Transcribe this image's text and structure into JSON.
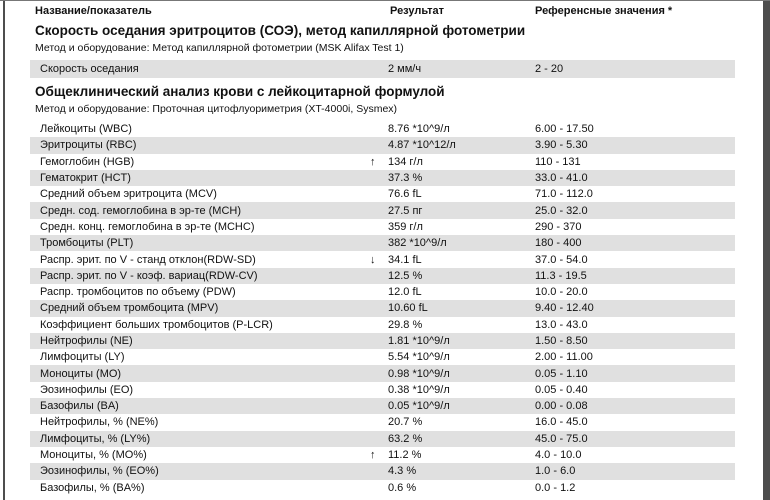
{
  "colors": {
    "row_shade": "#e0e0e0",
    "chrome": "#4d4d4d",
    "text": "#111111"
  },
  "columns": {
    "name": "Название/показатель",
    "result": "Результат",
    "reference": "Референсные значения *"
  },
  "sections": [
    {
      "title": "Скорость оседания эритроцитов (СОЭ), метод капиллярной фотометрии",
      "method": "Метод и оборудование: Метод капиллярной фотометрии (MSK Alifax Test 1)",
      "rows": [
        {
          "name": "Скорость оседания",
          "flag": "",
          "result": "2 мм/ч",
          "reference": "2 - 20",
          "shaded": true
        }
      ]
    },
    {
      "title": "Общеклинический анализ крови с лейкоцитарной формулой",
      "method": "Метод и оборудование: Проточная цитофлуориметрия (XT-4000i, Sysmex)",
      "rows": [
        {
          "name": "Лейкоциты (WBC)",
          "flag": "",
          "result": "8.76 *10^9/л",
          "reference": "6.00 - 17.50",
          "shaded": false
        },
        {
          "name": "Эритроциты (RBC)",
          "flag": "",
          "result": "4.87 *10^12/л",
          "reference": "3.90 - 5.30",
          "shaded": true
        },
        {
          "name": "Гемоглобин (HGB)",
          "flag": "↑",
          "result": "134 г/л",
          "reference": "110 - 131",
          "shaded": false
        },
        {
          "name": "Гематокрит (HCT)",
          "flag": "",
          "result": "37.3 %",
          "reference": "33.0 - 41.0",
          "shaded": true
        },
        {
          "name": "Средний объем эритроцита (MCV)",
          "flag": "",
          "result": "76.6 fL",
          "reference": "71.0 - 112.0",
          "shaded": false
        },
        {
          "name": "Средн. сод. гемоглобина в эр-те (MCH)",
          "flag": "",
          "result": "27.5 пг",
          "reference": "25.0 - 32.0",
          "shaded": true
        },
        {
          "name": "Средн. конц. гемоглобина в эр-те (MCHC)",
          "flag": "",
          "result": "359 г/л",
          "reference": "290 - 370",
          "shaded": false
        },
        {
          "name": "Тромбоциты (PLT)",
          "flag": "",
          "result": "382 *10^9/л",
          "reference": "180 - 400",
          "shaded": true
        },
        {
          "name": "Распр. эрит. по V - станд отклон(RDW-SD)",
          "flag": "↓",
          "result": "34.1 fL",
          "reference": "37.0 - 54.0",
          "shaded": false
        },
        {
          "name": "Распр. эрит. по V - коэф. вариац(RDW-CV)",
          "flag": "",
          "result": "12.5 %",
          "reference": "11.3 - 19.5",
          "shaded": true
        },
        {
          "name": "Распр. тромбоцитов по объему (PDW)",
          "flag": "",
          "result": "12.0 fL",
          "reference": "10.0 - 20.0",
          "shaded": false
        },
        {
          "name": "Средний объем тромбоцита (MPV)",
          "flag": "",
          "result": "10.60 fL",
          "reference": "9.40 - 12.40",
          "shaded": true
        },
        {
          "name": "Коэффициент больших тромбоцитов (P-LCR)",
          "flag": "",
          "result": "29.8 %",
          "reference": "13.0 - 43.0",
          "shaded": false
        },
        {
          "name": "Нейтрофилы (NE)",
          "flag": "",
          "result": "1.81 *10^9/л",
          "reference": "1.50 - 8.50",
          "shaded": true
        },
        {
          "name": "Лимфоциты (LY)",
          "flag": "",
          "result": "5.54 *10^9/л",
          "reference": "2.00 - 11.00",
          "shaded": false
        },
        {
          "name": "Моноциты (MO)",
          "flag": "",
          "result": "0.98 *10^9/л",
          "reference": "0.05 - 1.10",
          "shaded": true
        },
        {
          "name": "Эозинофилы (EO)",
          "flag": "",
          "result": "0.38 *10^9/л",
          "reference": "0.05 - 0.40",
          "shaded": false
        },
        {
          "name": "Базофилы (BA)",
          "flag": "",
          "result": "0.05 *10^9/л",
          "reference": "0.00 - 0.08",
          "shaded": true
        },
        {
          "name": "Нейтрофилы, % (NE%)",
          "flag": "",
          "result": "20.7 %",
          "reference": "16.0 - 45.0",
          "shaded": false
        },
        {
          "name": "Лимфоциты, % (LY%)",
          "flag": "",
          "result": "63.2 %",
          "reference": "45.0 - 75.0",
          "shaded": true
        },
        {
          "name": "Моноциты, % (MO%)",
          "flag": "↑",
          "result": "11.2 %",
          "reference": "4.0 - 10.0",
          "shaded": false
        },
        {
          "name": "Эозинофилы, % (EO%)",
          "flag": "",
          "result": "4.3 %",
          "reference": "1.0 - 6.0",
          "shaded": true
        },
        {
          "name": "Базофилы, % (BA%)",
          "flag": "",
          "result": "0.6 %",
          "reference": "0.0 - 1.2",
          "shaded": false
        }
      ]
    }
  ]
}
